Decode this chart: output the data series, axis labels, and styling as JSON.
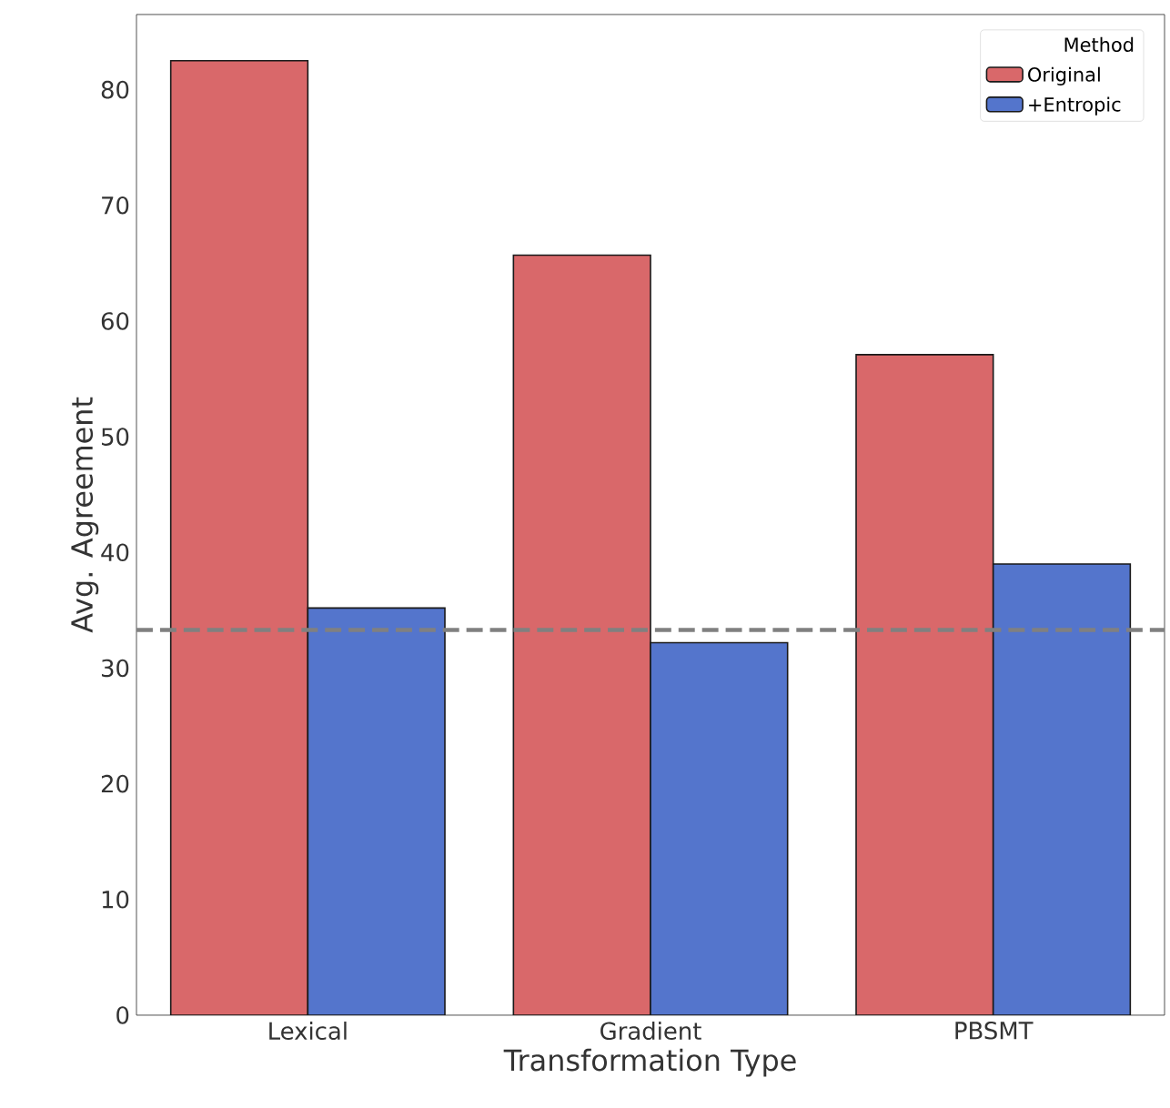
{
  "chart_data": {
    "type": "bar",
    "xlabel": "Transformation Type",
    "ylabel": "Avg. Agreement",
    "legend_title": "Method",
    "categories": [
      "Lexical",
      "Gradient",
      "PBSMT"
    ],
    "series": [
      {
        "name": "Original",
        "color": "#d9686a",
        "values": [
          82.5,
          65.7,
          57.1
        ]
      },
      {
        "name": "+Entropic",
        "color": "#5475cc",
        "values": [
          35.2,
          32.2,
          39.0
        ]
      }
    ],
    "ylim": [
      0,
      86.5
    ],
    "yticks": [
      0,
      10,
      20,
      30,
      40,
      50,
      60,
      70,
      80
    ],
    "ref_lines": [
      {
        "axis": "y",
        "value": 33.3,
        "color": "#808080",
        "line_style": "dashed"
      }
    ],
    "grid": false,
    "legend": "top right"
  }
}
